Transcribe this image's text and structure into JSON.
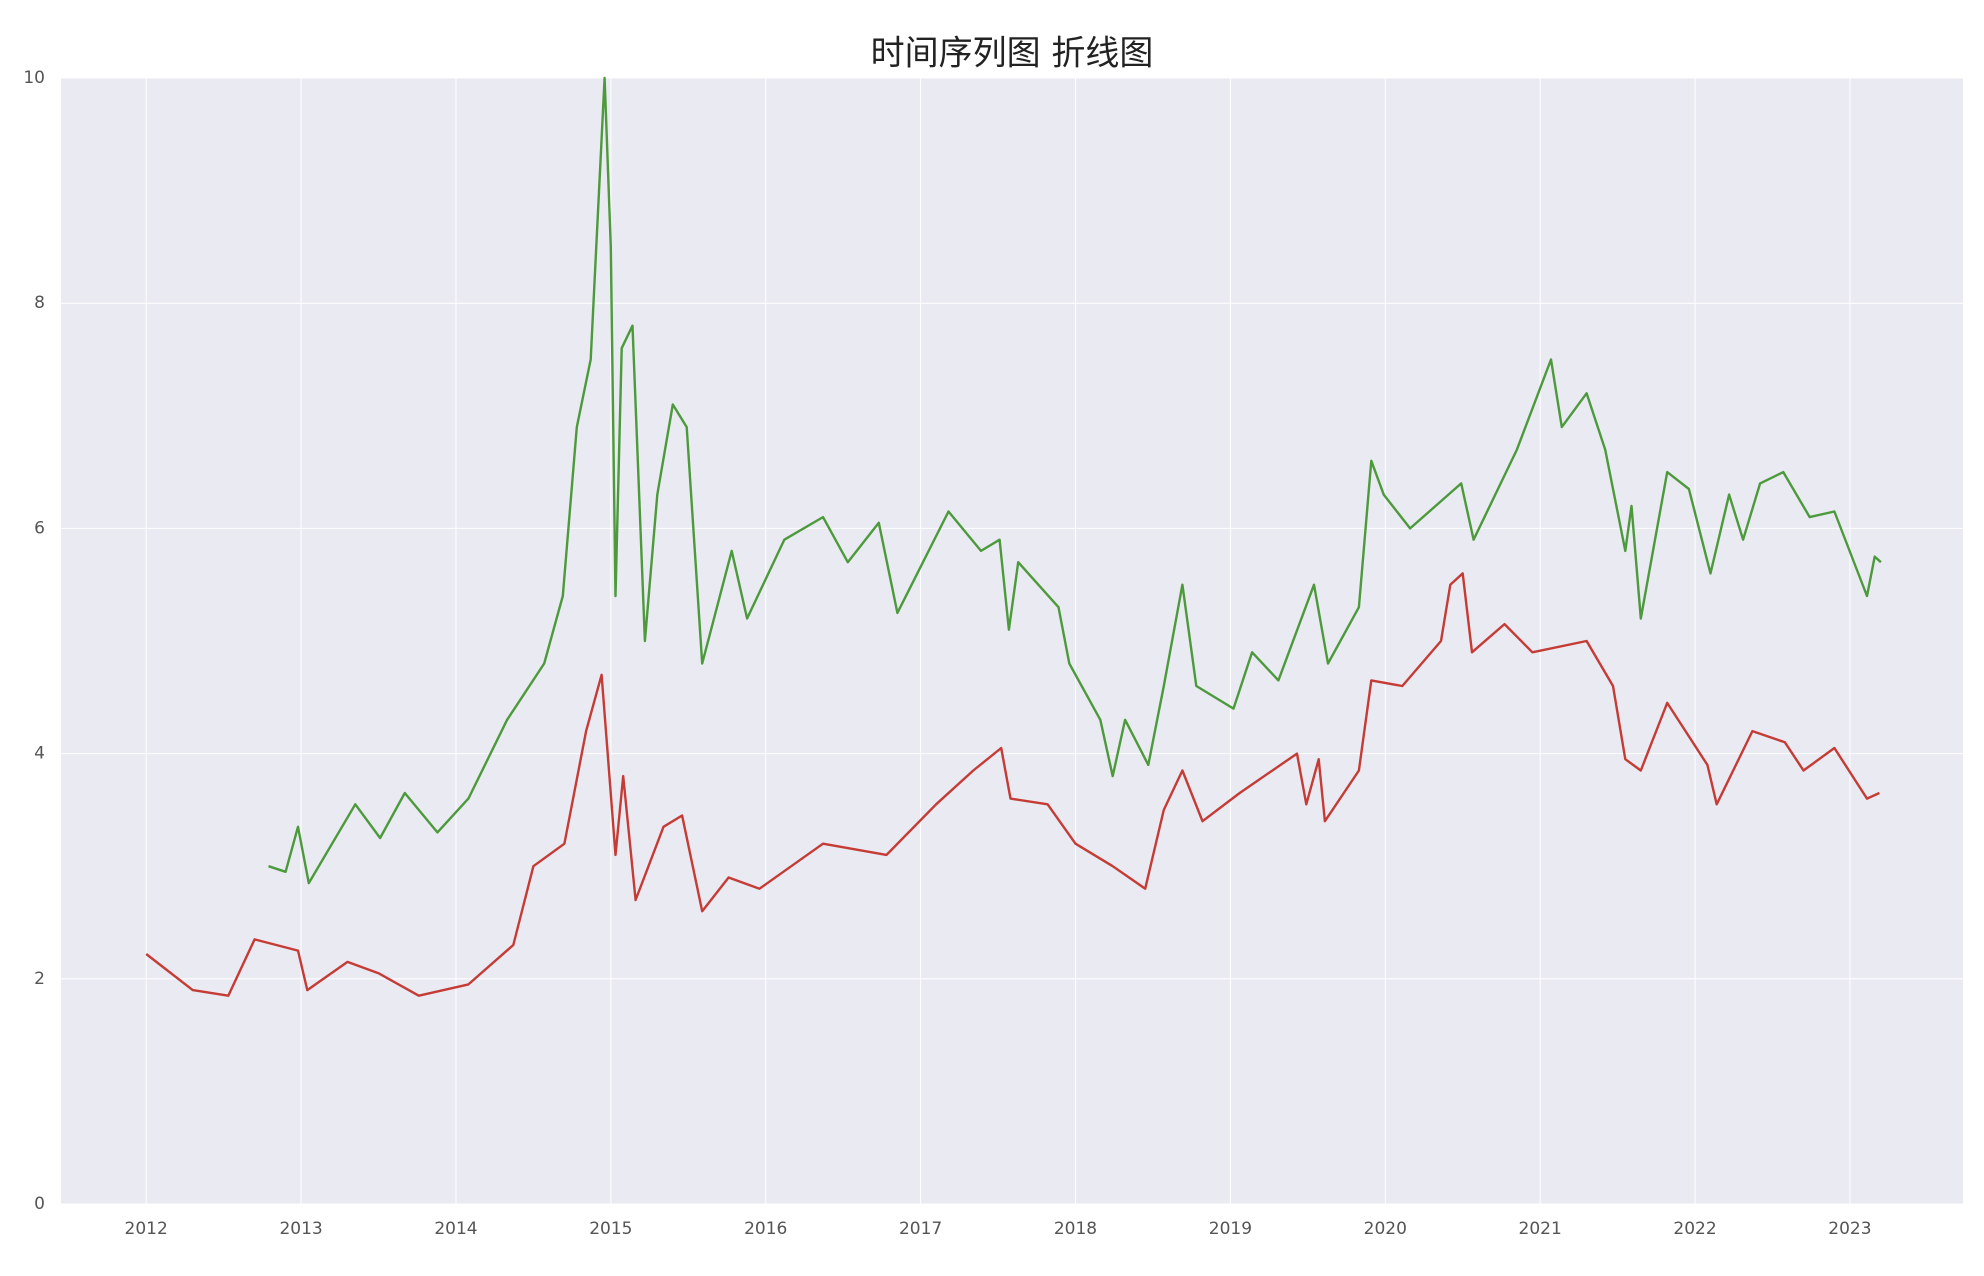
{
  "chart_data": {
    "type": "line",
    "title": "时间序列图 折线图",
    "xlim": [
      2011.45,
      2023.73
    ],
    "xticks": [
      2012,
      2013,
      2014,
      2015,
      2016,
      2017,
      2018,
      2019,
      2020,
      2021,
      2022,
      2023
    ],
    "ylim": [
      0,
      10
    ],
    "yticks": [
      0,
      2,
      4,
      6,
      8,
      10
    ],
    "grid": true,
    "series": [
      {
        "color": "#c43c35",
        "x": [
          2012.0,
          2012.3,
          2012.53,
          2012.7,
          2012.98,
          2013.04,
          2013.3,
          2013.5,
          2013.76,
          2014.08,
          2014.37,
          2014.5,
          2014.7,
          2014.84,
          2014.94,
          2015.03,
          2015.08,
          2015.16,
          2015.34,
          2015.46,
          2015.59,
          2015.76,
          2015.96,
          2016.37,
          2016.78,
          2017.1,
          2017.34,
          2017.52,
          2017.58,
          2017.82,
          2018.0,
          2018.24,
          2018.45,
          2018.57,
          2018.69,
          2018.82,
          2019.06,
          2019.43,
          2019.49,
          2019.57,
          2019.61,
          2019.83,
          2019.91,
          2020.11,
          2020.36,
          2020.42,
          2020.5,
          2020.56,
          2020.77,
          2020.95,
          2021.3,
          2021.47,
          2021.55,
          2021.65,
          2021.82,
          2022.08,
          2022.14,
          2022.37,
          2022.58,
          2022.7,
          2022.9,
          2023.11,
          2023.19
        ],
        "values": [
          2.22,
          1.9,
          1.85,
          2.35,
          2.25,
          1.9,
          2.15,
          2.05,
          1.85,
          1.95,
          2.3,
          3.0,
          3.2,
          4.2,
          4.7,
          3.1,
          3.8,
          2.7,
          3.35,
          3.45,
          2.6,
          2.9,
          2.8,
          3.2,
          3.1,
          3.55,
          3.85,
          4.05,
          3.6,
          3.55,
          3.2,
          3.0,
          2.8,
          3.5,
          3.85,
          3.4,
          3.65,
          4.0,
          3.55,
          3.95,
          3.4,
          3.85,
          4.65,
          4.6,
          5.0,
          5.5,
          5.6,
          4.9,
          5.15,
          4.9,
          5.0,
          4.6,
          3.95,
          3.85,
          4.45,
          3.9,
          3.55,
          4.2,
          4.1,
          3.85,
          4.05,
          3.6,
          3.65
        ]
      },
      {
        "color": "#4c9a3c",
        "x": [
          2012.79,
          2012.9,
          2012.98,
          2013.05,
          2013.35,
          2013.51,
          2013.67,
          2013.88,
          2014.08,
          2014.33,
          2014.57,
          2014.69,
          2014.78,
          2014.87,
          2014.96,
          2015.0,
          2015.03,
          2015.07,
          2015.14,
          2015.22,
          2015.3,
          2015.4,
          2015.49,
          2015.59,
          2015.78,
          2015.88,
          2016.12,
          2016.37,
          2016.53,
          2016.73,
          2016.85,
          2017.18,
          2017.39,
          2017.51,
          2017.57,
          2017.63,
          2017.89,
          2017.96,
          2018.16,
          2018.24,
          2018.32,
          2018.47,
          2018.57,
          2018.69,
          2018.78,
          2019.02,
          2019.14,
          2019.31,
          2019.54,
          2019.63,
          2019.83,
          2019.91,
          2019.99,
          2020.16,
          2020.49,
          2020.57,
          2020.85,
          2021.07,
          2021.14,
          2021.3,
          2021.42,
          2021.55,
          2021.59,
          2021.65,
          2021.82,
          2021.96,
          2022.1,
          2022.22,
          2022.31,
          2022.42,
          2022.57,
          2022.74,
          2022.9,
          2023.11,
          2023.16,
          2023.2
        ],
        "values": [
          3.0,
          2.95,
          3.35,
          2.85,
          3.55,
          3.25,
          3.65,
          3.3,
          3.6,
          4.3,
          4.8,
          5.4,
          6.9,
          7.5,
          10.0,
          8.5,
          5.4,
          7.6,
          7.8,
          5.0,
          6.3,
          7.1,
          6.9,
          4.8,
          5.8,
          5.2,
          5.9,
          6.1,
          5.7,
          6.05,
          5.25,
          6.15,
          5.8,
          5.9,
          5.1,
          5.7,
          5.3,
          4.8,
          4.3,
          3.8,
          4.3,
          3.9,
          4.6,
          5.5,
          4.6,
          4.4,
          4.9,
          4.65,
          5.5,
          4.8,
          5.3,
          6.6,
          6.3,
          6.0,
          6.4,
          5.9,
          6.7,
          7.5,
          6.9,
          7.2,
          6.7,
          5.8,
          6.2,
          5.2,
          6.5,
          6.35,
          5.6,
          6.3,
          5.9,
          6.4,
          6.5,
          6.1,
          6.15,
          5.4,
          5.75,
          5.7
        ]
      }
    ]
  }
}
